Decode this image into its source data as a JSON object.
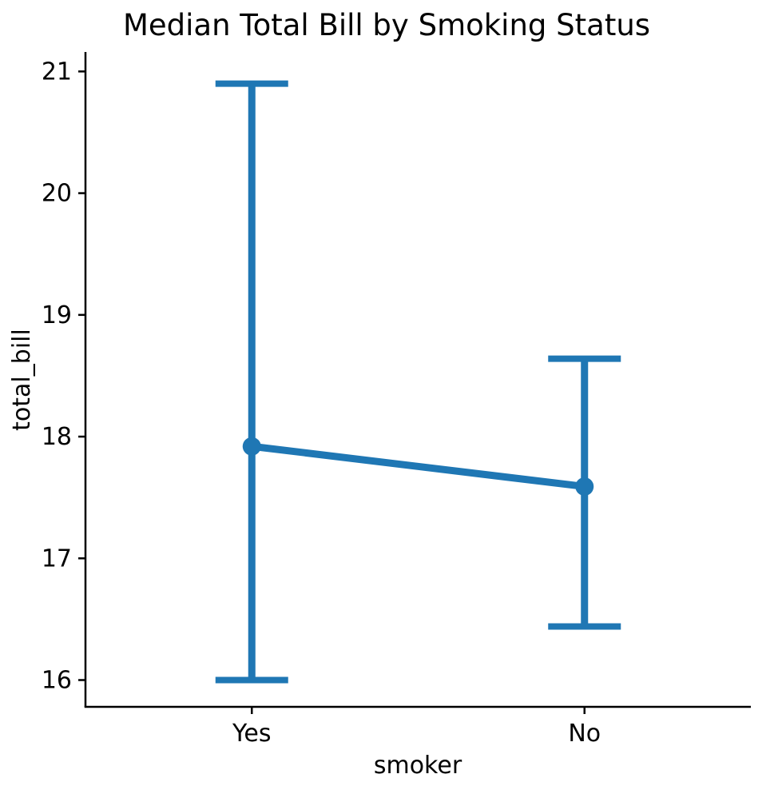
{
  "chart_data": {
    "type": "pointplot",
    "title": "Median Total Bill by Smoking Status",
    "xlabel": "smoker",
    "ylabel": "total_bill",
    "categories": [
      "Yes",
      "No"
    ],
    "series": [
      {
        "name": "median total_bill",
        "values": [
          17.92,
          17.59
        ],
        "err_low": [
          16.0,
          16.44
        ],
        "err_high": [
          20.9,
          18.64
        ]
      }
    ],
    "yticks": [
      16,
      17,
      18,
      19,
      20,
      21
    ],
    "ylim": [
      15.78,
      21.16
    ],
    "grid": false,
    "legend": false,
    "marker": "circle",
    "accent_color": "#1f77b4",
    "axis_color": "#000000",
    "background_color": "#ffffff"
  }
}
